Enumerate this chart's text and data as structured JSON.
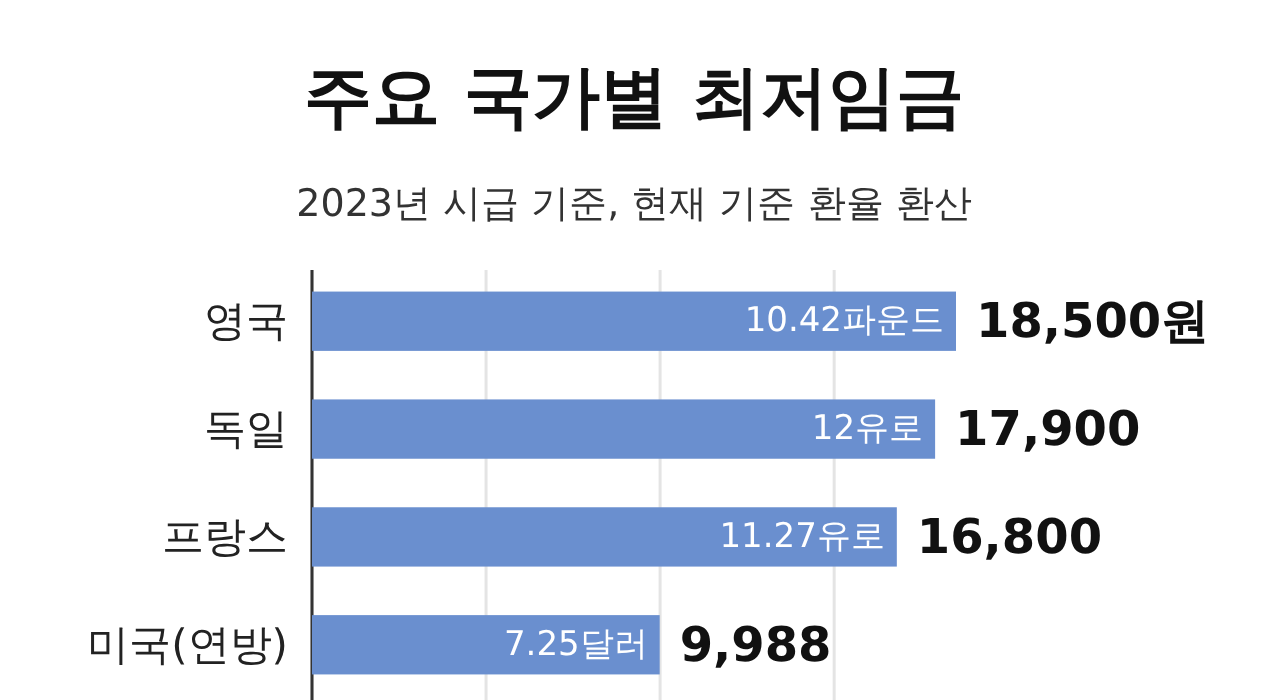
{
  "chart_data": {
    "type": "bar",
    "orientation": "horizontal",
    "title": "주요 국가별 최저임금",
    "subtitle": "2023년 시급 기준, 현재 기준 환율 환산",
    "categories": [
      "영국",
      "독일",
      "프랑스",
      "미국(연방)"
    ],
    "values": [
      18500,
      17900,
      16800,
      9988
    ],
    "value_labels": [
      "18,500원",
      "17,900",
      "16,800",
      "9,988"
    ],
    "color": "#6a8fcf",
    "xticks": [
      {
        "value": 0,
        "label": null
      },
      {
        "value": 5000,
        "label": null
      },
      {
        "value": 10000,
        "label": null
      },
      {
        "value": 15000,
        "label": null
      }
    ],
    "grid": "x",
    "tick_labels": "y",
    "annotations": [
      {
        "text": "10.42파운드",
        "x": 18500,
        "y": "영국"
      },
      {
        "text": "12유로",
        "x": 17900,
        "y": "독일"
      },
      {
        "text": "11.27유로",
        "x": 16800,
        "y": "프랑스"
      },
      {
        "text": "7.25달러",
        "x": 9988,
        "y": "미국(연방)"
      }
    ]
  }
}
